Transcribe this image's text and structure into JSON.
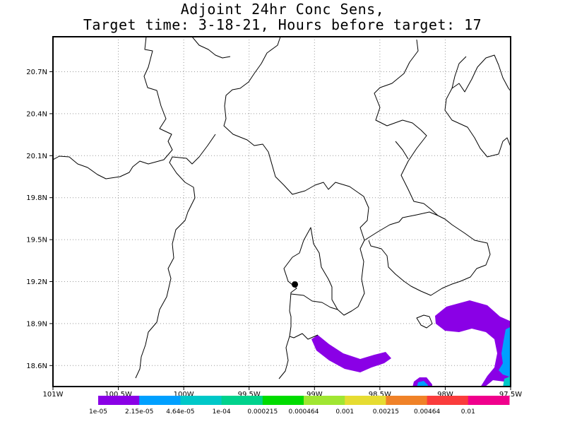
{
  "title": {
    "line1": "Adjoint 24hr Conc Sens,",
    "line2": "Target time: 3-18-21, Hours before target: 17"
  },
  "map": {
    "lon_range": [
      -101.0,
      -97.5
    ],
    "lat_range": [
      18.45,
      20.95
    ],
    "lat_ticks": [
      "20.7N",
      "20.4N",
      "20.1N",
      "19.8N",
      "19.5N",
      "19.2N",
      "18.9N",
      "18.6N"
    ],
    "lon_ticks": [
      "101W",
      "100.5W",
      "100W",
      "99.5W",
      "99W",
      "98.5W",
      "98W",
      "97.5W"
    ],
    "grid": "dotted",
    "target_marker": {
      "lon": -99.15,
      "lat": 19.18
    },
    "colors": {
      "frame": "#000000",
      "grid": "#9a9a9a",
      "borders": "#000000"
    }
  },
  "colorbar": {
    "colors": [
      "#8a00e6",
      "#00a0ff",
      "#00c8c8",
      "#00d28c",
      "#00dc00",
      "#a0e632",
      "#e6dc32",
      "#f08228",
      "#fa3c3c",
      "#f0008c"
    ],
    "labels": [
      "1e-05",
      "2.15e-05",
      "4.64e-05",
      "1e-04",
      "0.000215",
      "0.000464",
      "0.001",
      "0.00215",
      "0.00464",
      "0.01"
    ]
  }
}
